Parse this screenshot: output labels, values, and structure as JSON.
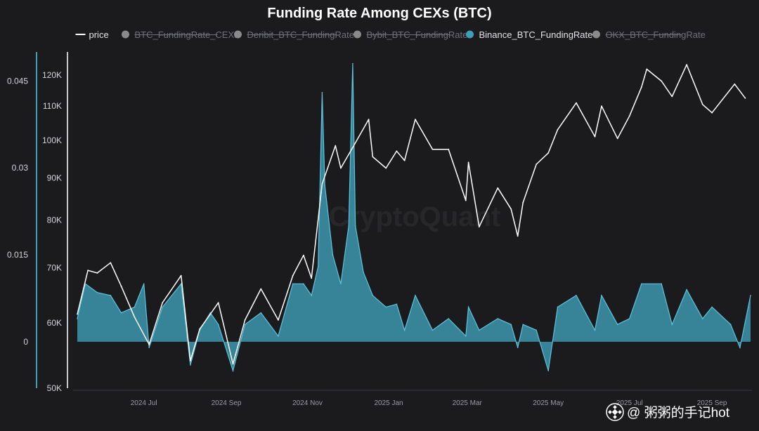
{
  "chart_data": {
    "type": "line",
    "title": "Funding Rate Among CEXs (BTC)",
    "legend": [
      {
        "name": "price",
        "active": true,
        "color": "#ffffff"
      },
      {
        "name": "BTC_FundingRate_CEXs",
        "active": false,
        "color": "#8a8a8a"
      },
      {
        "name": "Deribit_BTC_FundingRate",
        "active": false,
        "color": "#8a8a8a"
      },
      {
        "name": "Bybit_BTC_FundingRate",
        "active": false,
        "color": "#8a8a8a"
      },
      {
        "name": "Binance_BTC_FundingRate",
        "active": true,
        "color": "#3e9fb8"
      },
      {
        "name": "OKX_BTC_FundingRate",
        "active": false,
        "color": "#8a8a8a"
      }
    ],
    "legend_position": "top",
    "grid": false,
    "x_axis": {
      "range": [
        "2024-05-12",
        "2025-09-30"
      ],
      "ticks": [
        {
          "date": "2024-07-01",
          "label": "2024 Jul"
        },
        {
          "date": "2024-09-01",
          "label": "2024 Sep"
        },
        {
          "date": "2024-11-01",
          "label": "2024 Nov"
        },
        {
          "date": "2025-01-01",
          "label": "2025 Jan"
        },
        {
          "date": "2025-03-01",
          "label": "2025 Mar"
        },
        {
          "date": "2025-05-01",
          "label": "2025 May"
        },
        {
          "date": "2025-07-01",
          "label": "2025 Jul"
        },
        {
          "date": "2025-09-01",
          "label": "2025 Sep"
        }
      ]
    },
    "y_axis_price": {
      "scale": "log",
      "range": [
        50000,
        128000
      ],
      "ticks": [
        {
          "value": 50000,
          "label": "50K"
        },
        {
          "value": 60000,
          "label": "60K"
        },
        {
          "value": 70000,
          "label": "70K"
        },
        {
          "value": 80000,
          "label": "80K"
        },
        {
          "value": 90000,
          "label": "90K"
        },
        {
          "value": 100000,
          "label": "100K"
        },
        {
          "value": 110000,
          "label": "110K"
        },
        {
          "value": 120000,
          "label": "120K"
        }
      ]
    },
    "y_axis_funding": {
      "range": [
        -0.008,
        0.05
      ],
      "ticks": [
        {
          "value": 0,
          "label": "0"
        },
        {
          "value": 0.015,
          "label": "0.015"
        },
        {
          "value": 0.03,
          "label": "0.03"
        },
        {
          "value": 0.045,
          "label": "0.045"
        }
      ]
    },
    "series": [
      {
        "name": "price",
        "axis": "price",
        "color": "#ffffff",
        "points": [
          [
            "2024-05-12",
            61500
          ],
          [
            "2024-05-20",
            69500
          ],
          [
            "2024-05-27",
            69000
          ],
          [
            "2024-06-06",
            71000
          ],
          [
            "2024-06-14",
            66500
          ],
          [
            "2024-06-24",
            61000
          ],
          [
            "2024-07-05",
            56500
          ],
          [
            "2024-07-15",
            63500
          ],
          [
            "2024-07-29",
            68500
          ],
          [
            "2024-08-05",
            54000
          ],
          [
            "2024-08-12",
            59000
          ],
          [
            "2024-08-20",
            61500
          ],
          [
            "2024-08-26",
            63500
          ],
          [
            "2024-09-06",
            53500
          ],
          [
            "2024-09-15",
            60500
          ],
          [
            "2024-09-27",
            66000
          ],
          [
            "2024-10-10",
            60500
          ],
          [
            "2024-10-21",
            68500
          ],
          [
            "2024-10-29",
            72500
          ],
          [
            "2024-11-04",
            68000
          ],
          [
            "2024-11-12",
            88500
          ],
          [
            "2024-11-22",
            98500
          ],
          [
            "2024-11-26",
            92500
          ],
          [
            "2024-12-05",
            98000
          ],
          [
            "2024-12-17",
            106000
          ],
          [
            "2024-12-20",
            95500
          ],
          [
            "2024-12-30",
            92500
          ],
          [
            "2025-01-07",
            97000
          ],
          [
            "2025-01-13",
            94500
          ],
          [
            "2025-01-21",
            106000
          ],
          [
            "2025-02-03",
            97500
          ],
          [
            "2025-02-15",
            97500
          ],
          [
            "2025-02-28",
            84500
          ],
          [
            "2025-03-02",
            94000
          ],
          [
            "2025-03-10",
            78500
          ],
          [
            "2025-03-24",
            87500
          ],
          [
            "2025-04-03",
            82500
          ],
          [
            "2025-04-08",
            76500
          ],
          [
            "2025-04-12",
            84000
          ],
          [
            "2025-04-22",
            93500
          ],
          [
            "2025-05-01",
            96500
          ],
          [
            "2025-05-08",
            103000
          ],
          [
            "2025-05-22",
            111000
          ],
          [
            "2025-06-05",
            101000
          ],
          [
            "2025-06-10",
            110000
          ],
          [
            "2025-06-22",
            100500
          ],
          [
            "2025-07-01",
            107000
          ],
          [
            "2025-07-10",
            116000
          ],
          [
            "2025-07-14",
            122000
          ],
          [
            "2025-07-25",
            118000
          ],
          [
            "2025-08-02",
            113000
          ],
          [
            "2025-08-13",
            123500
          ],
          [
            "2025-08-25",
            110500
          ],
          [
            "2025-09-01",
            108000
          ],
          [
            "2025-09-18",
            117000
          ],
          [
            "2025-09-26",
            112500
          ]
        ]
      },
      {
        "name": "Binance_BTC_FundingRate",
        "axis": "funding",
        "color": "#3e9fb8",
        "points": [
          [
            "2024-05-12",
            0.004
          ],
          [
            "2024-05-18",
            0.01
          ],
          [
            "2024-05-27",
            0.0085
          ],
          [
            "2024-06-06",
            0.008
          ],
          [
            "2024-06-14",
            0.005
          ],
          [
            "2024-06-24",
            0.006
          ],
          [
            "2024-07-01",
            0.01
          ],
          [
            "2024-07-05",
            -0.001
          ],
          [
            "2024-07-15",
            0.006
          ],
          [
            "2024-07-29",
            0.01
          ],
          [
            "2024-08-05",
            -0.004
          ],
          [
            "2024-08-12",
            0.002
          ],
          [
            "2024-08-20",
            0.005
          ],
          [
            "2024-08-26",
            0.003
          ],
          [
            "2024-09-06",
            -0.005
          ],
          [
            "2024-09-15",
            0.003
          ],
          [
            "2024-09-27",
            0.005
          ],
          [
            "2024-10-10",
            0.001
          ],
          [
            "2024-10-21",
            0.01
          ],
          [
            "2024-10-29",
            0.01
          ],
          [
            "2024-11-04",
            0.008
          ],
          [
            "2024-11-09",
            0.013
          ],
          [
            "2024-11-12",
            0.043
          ],
          [
            "2024-11-14",
            0.027
          ],
          [
            "2024-11-20",
            0.015
          ],
          [
            "2024-11-26",
            0.01
          ],
          [
            "2024-12-02",
            0.02
          ],
          [
            "2024-12-05",
            0.048
          ],
          [
            "2024-12-07",
            0.02
          ],
          [
            "2024-12-13",
            0.012
          ],
          [
            "2024-12-20",
            0.008
          ],
          [
            "2024-12-30",
            0.006
          ],
          [
            "2025-01-07",
            0.0065
          ],
          [
            "2025-01-13",
            0.002
          ],
          [
            "2025-01-21",
            0.008
          ],
          [
            "2025-02-03",
            0.002
          ],
          [
            "2025-02-15",
            0.004
          ],
          [
            "2025-02-28",
            0.001
          ],
          [
            "2025-03-02",
            0.006
          ],
          [
            "2025-03-10",
            0.002
          ],
          [
            "2025-03-24",
            0.004
          ],
          [
            "2025-04-03",
            0.003
          ],
          [
            "2025-04-08",
            -0.001
          ],
          [
            "2025-04-12",
            0.003
          ],
          [
            "2025-04-22",
            0.002
          ],
          [
            "2025-05-01",
            -0.005
          ],
          [
            "2025-05-08",
            0.006
          ],
          [
            "2025-05-22",
            0.008
          ],
          [
            "2025-06-05",
            0.002
          ],
          [
            "2025-06-10",
            0.008
          ],
          [
            "2025-06-22",
            0.003
          ],
          [
            "2025-07-01",
            0.004
          ],
          [
            "2025-07-10",
            0.01
          ],
          [
            "2025-07-25",
            0.01
          ],
          [
            "2025-08-02",
            0.003
          ],
          [
            "2025-08-13",
            0.009
          ],
          [
            "2025-08-25",
            0.004
          ],
          [
            "2025-09-01",
            0.006
          ],
          [
            "2025-09-15",
            0.003
          ],
          [
            "2025-09-22",
            -0.001
          ],
          [
            "2025-09-30",
            0.008
          ]
        ]
      }
    ]
  },
  "watermark": "CryptoQuant",
  "source_badge": {
    "icon": "binance-logo-icon",
    "text": "@ 粥粥的手记hot"
  }
}
